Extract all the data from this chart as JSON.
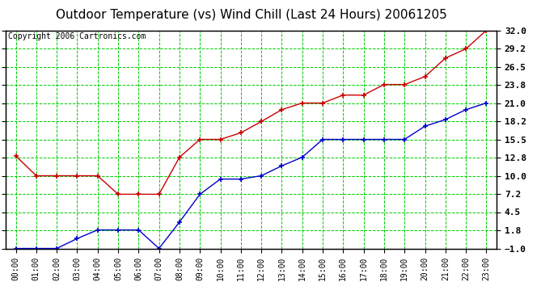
{
  "title": "Outdoor Temperature (vs) Wind Chill (Last 24 Hours) 20061205",
  "copyright": "Copyright 2006 Cartronics.com",
  "x_labels": [
    "00:00",
    "01:00",
    "02:00",
    "03:00",
    "04:00",
    "05:00",
    "06:00",
    "07:00",
    "08:00",
    "09:00",
    "10:00",
    "11:00",
    "12:00",
    "13:00",
    "14:00",
    "15:00",
    "16:00",
    "17:00",
    "18:00",
    "19:00",
    "20:00",
    "21:00",
    "22:00",
    "23:00"
  ],
  "temp_red": [
    13.0,
    10.0,
    10.0,
    10.0,
    10.0,
    7.2,
    7.2,
    7.2,
    12.8,
    15.5,
    15.5,
    16.5,
    18.2,
    20.0,
    21.0,
    21.0,
    22.2,
    22.2,
    23.8,
    23.8,
    25.0,
    27.8,
    29.2,
    32.0
  ],
  "wind_blue": [
    -1.0,
    -1.0,
    -1.0,
    0.5,
    1.8,
    1.8,
    1.8,
    -1.0,
    3.0,
    7.2,
    9.5,
    9.5,
    10.0,
    11.5,
    12.8,
    15.5,
    15.5,
    15.5,
    15.5,
    15.5,
    17.5,
    18.5,
    20.0,
    21.0
  ],
  "red_color": "#cc0000",
  "blue_color": "#0000cc",
  "bg_color": "#ffffff",
  "plot_bg": "#ffffff",
  "grid_color": "#00cc00",
  "ylim": [
    -1.0,
    32.0
  ],
  "yticks": [
    -1.0,
    1.8,
    4.5,
    7.2,
    10.0,
    12.8,
    15.5,
    18.2,
    21.0,
    23.8,
    26.5,
    29.2,
    32.0
  ],
  "title_fontsize": 11,
  "copyright_fontsize": 7,
  "tick_fontsize": 8,
  "xtick_fontsize": 7
}
